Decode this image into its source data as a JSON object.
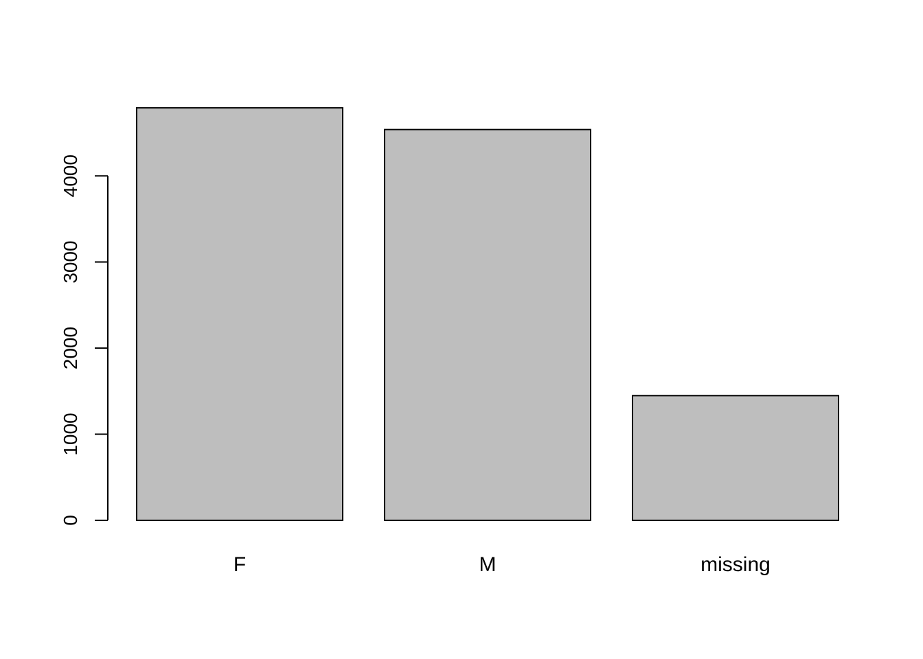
{
  "chart_data": {
    "type": "bar",
    "categories": [
      "F",
      "M",
      "missing"
    ],
    "values": [
      4790,
      4538,
      1448
    ],
    "ylim": [
      0,
      4790
    ],
    "yticks": [
      0,
      1000,
      2000,
      3000,
      4000
    ],
    "title": "",
    "xlabel": "",
    "ylabel": "",
    "grid": false,
    "legend": false,
    "colors": {
      "bar_fill": "#bebebe",
      "bar_stroke": "#000000",
      "axis": "#000000",
      "background": "#ffffff"
    }
  }
}
